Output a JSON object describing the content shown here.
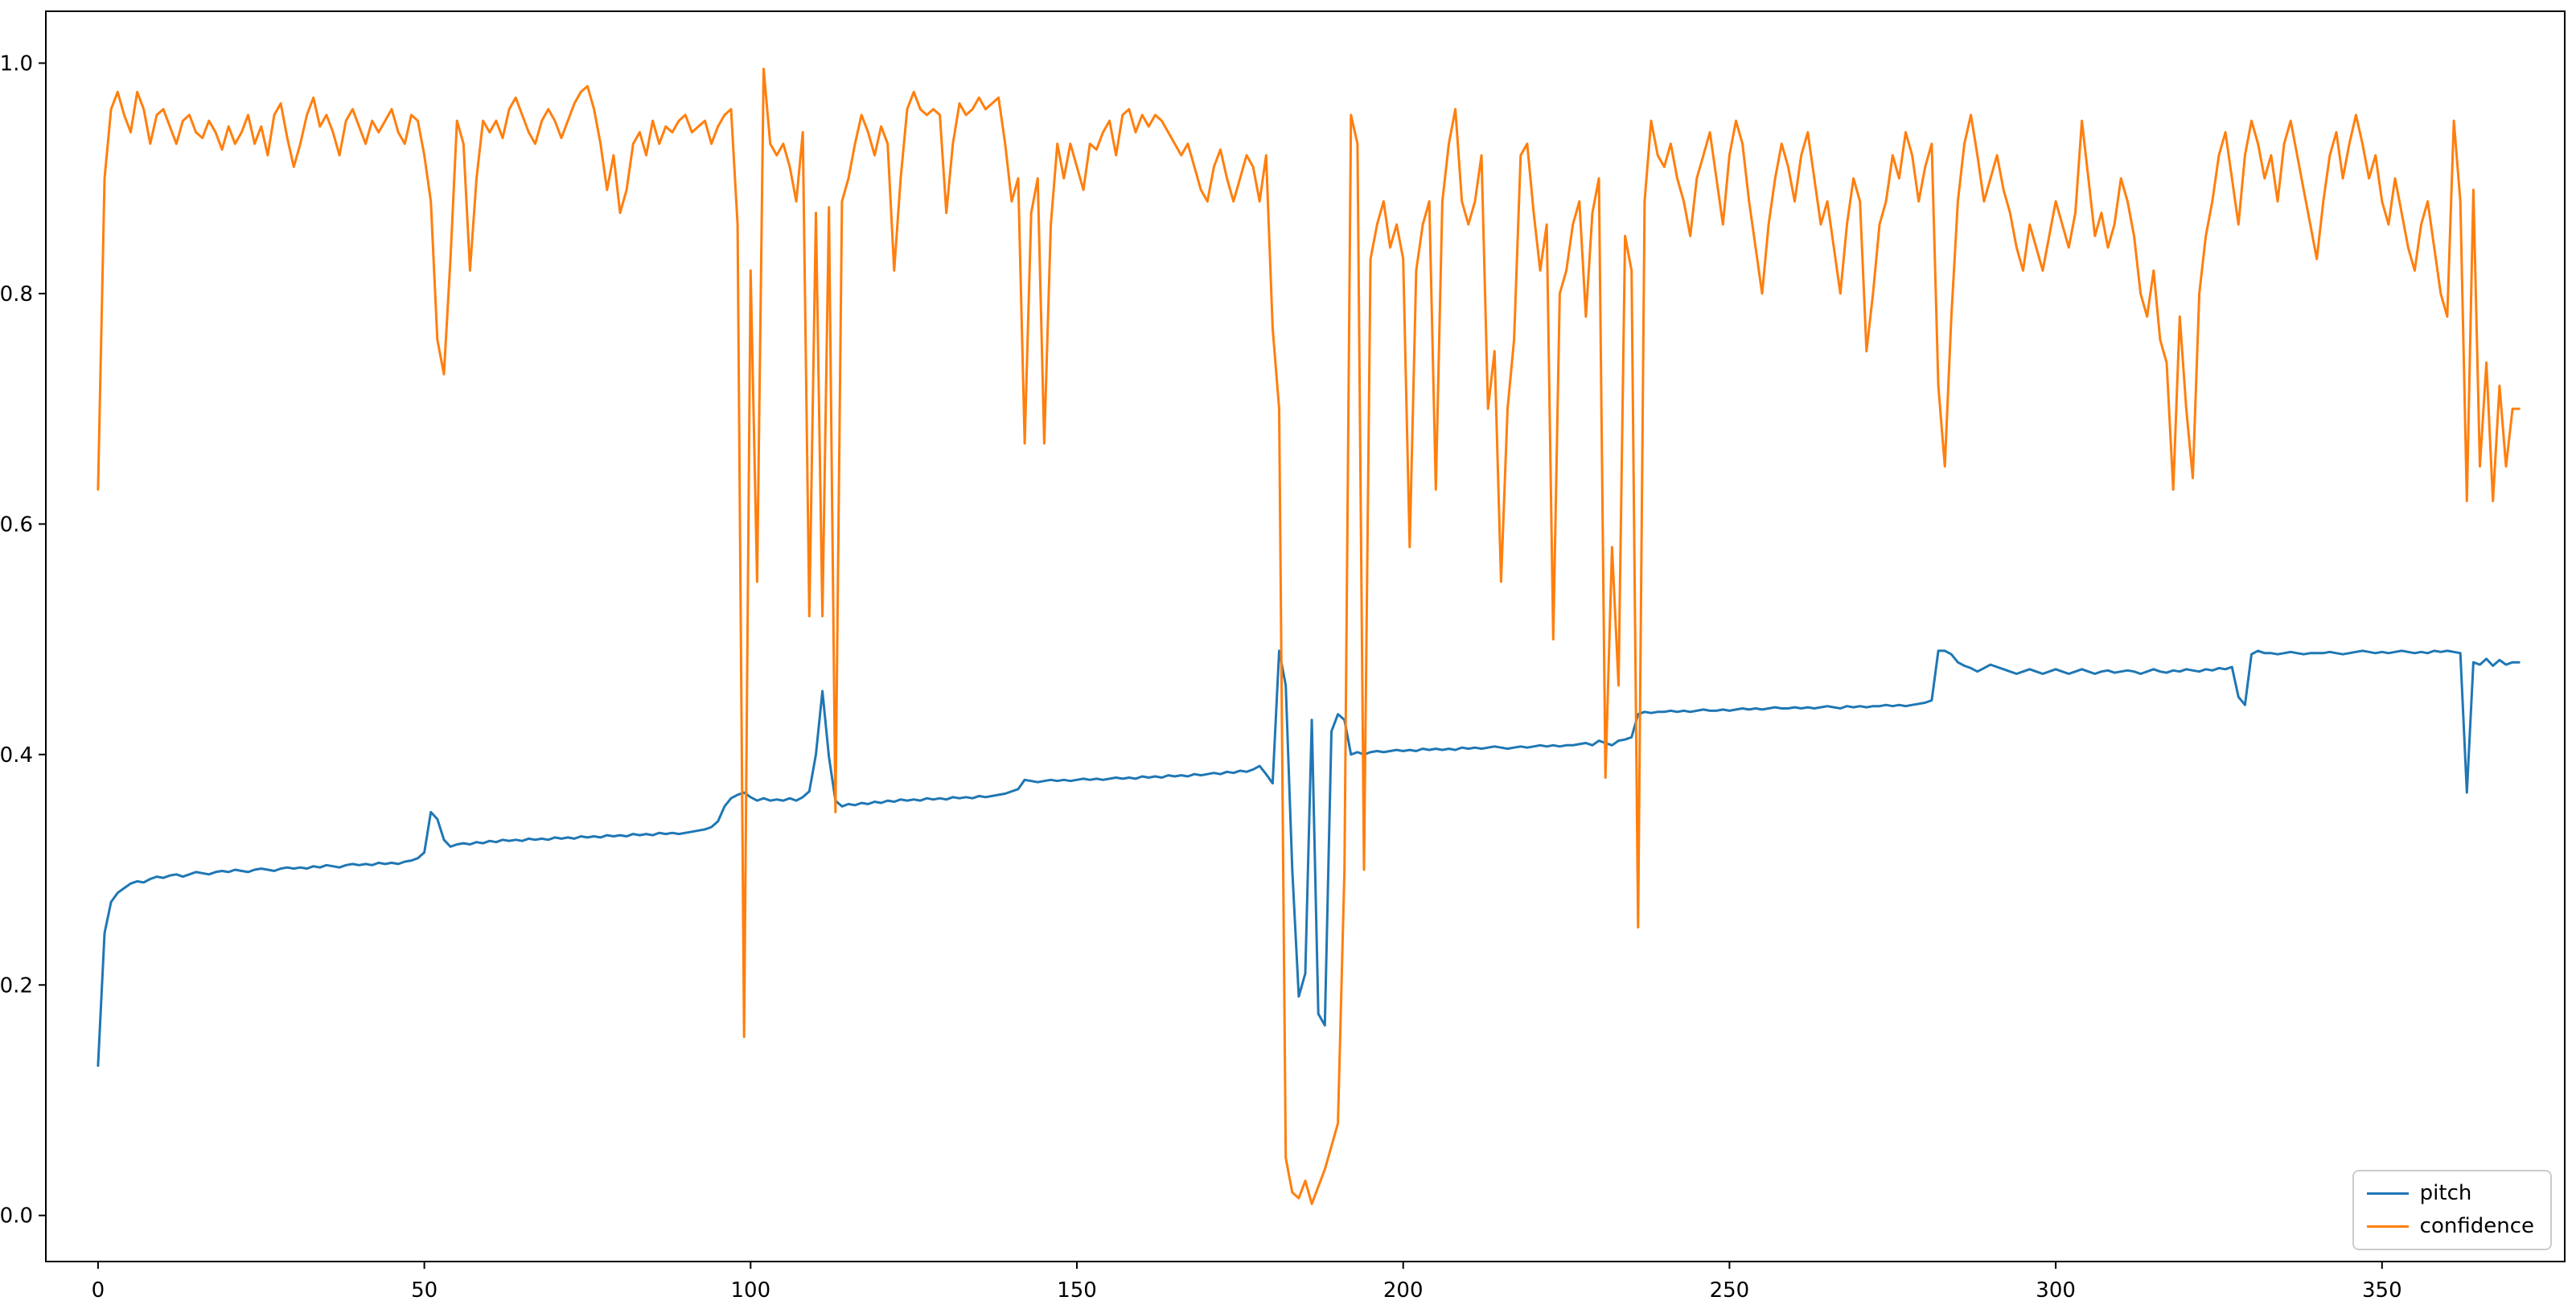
{
  "figure": {
    "background": "#ffffff",
    "axes_edge_color": "#000000",
    "tick_label_color": "#000000"
  },
  "chart_data": {
    "type": "line",
    "grid": false,
    "xlabel": "",
    "ylabel": "",
    "xlim": [
      -8,
      378
    ],
    "ylim": [
      -0.04,
      1.045
    ],
    "x_ticks": [
      0,
      50,
      100,
      150,
      200,
      250,
      300,
      350
    ],
    "x_tick_labels": [
      "0",
      "50",
      "100",
      "150",
      "200",
      "250",
      "300",
      "350"
    ],
    "y_ticks": [
      0.0,
      0.2,
      0.4,
      0.6,
      0.8,
      1.0
    ],
    "y_tick_labels": [
      "0.0",
      "0.2",
      "0.4",
      "0.6",
      "0.8",
      "1.0"
    ],
    "legend": {
      "position": "lower right",
      "entries": [
        "pitch",
        "confidence"
      ]
    },
    "series": [
      {
        "name": "pitch",
        "color": "#1f77b4",
        "values": [
          0.13,
          0.245,
          0.272,
          0.28,
          0.284,
          0.288,
          0.29,
          0.289,
          0.292,
          0.294,
          0.293,
          0.295,
          0.296,
          0.294,
          0.296,
          0.298,
          0.297,
          0.296,
          0.298,
          0.299,
          0.298,
          0.3,
          0.299,
          0.298,
          0.3,
          0.301,
          0.3,
          0.299,
          0.301,
          0.302,
          0.301,
          0.302,
          0.301,
          0.303,
          0.302,
          0.304,
          0.303,
          0.302,
          0.304,
          0.305,
          0.304,
          0.305,
          0.304,
          0.306,
          0.305,
          0.306,
          0.305,
          0.307,
          0.308,
          0.31,
          0.315,
          0.35,
          0.344,
          0.326,
          0.32,
          0.322,
          0.323,
          0.322,
          0.324,
          0.323,
          0.325,
          0.324,
          0.326,
          0.325,
          0.326,
          0.325,
          0.327,
          0.326,
          0.327,
          0.326,
          0.328,
          0.327,
          0.328,
          0.327,
          0.329,
          0.328,
          0.329,
          0.328,
          0.33,
          0.329,
          0.33,
          0.329,
          0.331,
          0.33,
          0.331,
          0.33,
          0.332,
          0.331,
          0.332,
          0.331,
          0.332,
          0.333,
          0.334,
          0.335,
          0.337,
          0.342,
          0.355,
          0.362,
          0.365,
          0.367,
          0.363,
          0.36,
          0.362,
          0.36,
          0.361,
          0.36,
          0.362,
          0.36,
          0.363,
          0.368,
          0.4,
          0.455,
          0.398,
          0.36,
          0.355,
          0.357,
          0.356,
          0.358,
          0.357,
          0.359,
          0.358,
          0.36,
          0.359,
          0.361,
          0.36,
          0.361,
          0.36,
          0.362,
          0.361,
          0.362,
          0.361,
          0.363,
          0.362,
          0.363,
          0.362,
          0.364,
          0.363,
          0.364,
          0.365,
          0.366,
          0.368,
          0.37,
          0.378,
          0.377,
          0.376,
          0.377,
          0.378,
          0.377,
          0.378,
          0.377,
          0.378,
          0.379,
          0.378,
          0.379,
          0.378,
          0.379,
          0.38,
          0.379,
          0.38,
          0.379,
          0.381,
          0.38,
          0.381,
          0.38,
          0.382,
          0.381,
          0.382,
          0.381,
          0.383,
          0.382,
          0.383,
          0.384,
          0.383,
          0.385,
          0.384,
          0.386,
          0.385,
          0.387,
          0.39,
          0.383,
          0.375,
          0.49,
          0.46,
          0.3,
          0.19,
          0.21,
          0.43,
          0.175,
          0.165,
          0.42,
          0.435,
          0.43,
          0.4,
          0.402,
          0.4,
          0.402,
          0.403,
          0.402,
          0.403,
          0.404,
          0.403,
          0.404,
          0.403,
          0.405,
          0.404,
          0.405,
          0.404,
          0.405,
          0.404,
          0.406,
          0.405,
          0.406,
          0.405,
          0.406,
          0.407,
          0.406,
          0.405,
          0.406,
          0.407,
          0.406,
          0.407,
          0.408,
          0.407,
          0.408,
          0.407,
          0.408,
          0.408,
          0.409,
          0.41,
          0.408,
          0.412,
          0.41,
          0.408,
          0.412,
          0.413,
          0.415,
          0.435,
          0.437,
          0.436,
          0.437,
          0.437,
          0.438,
          0.437,
          0.438,
          0.437,
          0.438,
          0.439,
          0.438,
          0.438,
          0.439,
          0.438,
          0.439,
          0.44,
          0.439,
          0.44,
          0.439,
          0.44,
          0.441,
          0.44,
          0.44,
          0.441,
          0.44,
          0.441,
          0.44,
          0.441,
          0.442,
          0.441,
          0.44,
          0.442,
          0.441,
          0.442,
          0.441,
          0.442,
          0.442,
          0.443,
          0.442,
          0.443,
          0.442,
          0.443,
          0.444,
          0.445,
          0.447,
          0.49,
          0.49,
          0.487,
          0.48,
          0.477,
          0.475,
          0.472,
          0.475,
          0.478,
          0.476,
          0.474,
          0.472,
          0.47,
          0.472,
          0.474,
          0.472,
          0.47,
          0.472,
          0.474,
          0.472,
          0.47,
          0.472,
          0.474,
          0.472,
          0.47,
          0.472,
          0.473,
          0.471,
          0.472,
          0.473,
          0.472,
          0.47,
          0.472,
          0.474,
          0.472,
          0.471,
          0.473,
          0.472,
          0.474,
          0.473,
          0.472,
          0.474,
          0.473,
          0.475,
          0.474,
          0.476,
          0.45,
          0.443,
          0.487,
          0.49,
          0.488,
          0.488,
          0.487,
          0.488,
          0.489,
          0.488,
          0.487,
          0.488,
          0.488,
          0.488,
          0.489,
          0.488,
          0.487,
          0.488,
          0.489,
          0.49,
          0.489,
          0.488,
          0.489,
          0.488,
          0.489,
          0.49,
          0.489,
          0.488,
          0.489,
          0.488,
          0.49,
          0.489,
          0.49,
          0.489,
          0.488,
          0.367,
          0.48,
          0.478,
          0.483,
          0.477,
          0.482,
          0.478,
          0.48,
          0.48
        ]
      },
      {
        "name": "confidence",
        "color": "#ff7f0e",
        "values": [
          0.63,
          0.9,
          0.96,
          0.975,
          0.955,
          0.94,
          0.975,
          0.96,
          0.93,
          0.955,
          0.96,
          0.945,
          0.93,
          0.95,
          0.955,
          0.94,
          0.935,
          0.95,
          0.94,
          0.925,
          0.945,
          0.93,
          0.94,
          0.955,
          0.93,
          0.945,
          0.92,
          0.955,
          0.965,
          0.935,
          0.91,
          0.93,
          0.955,
          0.97,
          0.945,
          0.955,
          0.94,
          0.92,
          0.95,
          0.96,
          0.945,
          0.93,
          0.95,
          0.94,
          0.95,
          0.96,
          0.94,
          0.93,
          0.955,
          0.95,
          0.92,
          0.88,
          0.76,
          0.73,
          0.83,
          0.95,
          0.93,
          0.82,
          0.9,
          0.95,
          0.94,
          0.95,
          0.935,
          0.96,
          0.97,
          0.955,
          0.94,
          0.93,
          0.95,
          0.96,
          0.95,
          0.935,
          0.95,
          0.965,
          0.975,
          0.98,
          0.96,
          0.93,
          0.89,
          0.92,
          0.87,
          0.89,
          0.93,
          0.94,
          0.92,
          0.95,
          0.93,
          0.945,
          0.94,
          0.95,
          0.955,
          0.94,
          0.945,
          0.95,
          0.93,
          0.945,
          0.955,
          0.96,
          0.86,
          0.155,
          0.82,
          0.55,
          0.995,
          0.93,
          0.92,
          0.93,
          0.91,
          0.88,
          0.94,
          0.52,
          0.87,
          0.52,
          0.875,
          0.35,
          0.88,
          0.9,
          0.93,
          0.955,
          0.94,
          0.92,
          0.945,
          0.93,
          0.82,
          0.9,
          0.96,
          0.975,
          0.96,
          0.955,
          0.96,
          0.955,
          0.87,
          0.93,
          0.965,
          0.955,
          0.96,
          0.97,
          0.96,
          0.965,
          0.97,
          0.93,
          0.88,
          0.9,
          0.67,
          0.87,
          0.9,
          0.67,
          0.86,
          0.93,
          0.9,
          0.93,
          0.91,
          0.89,
          0.93,
          0.925,
          0.94,
          0.95,
          0.92,
          0.955,
          0.96,
          0.94,
          0.955,
          0.945,
          0.955,
          0.95,
          0.94,
          0.93,
          0.92,
          0.93,
          0.91,
          0.89,
          0.88,
          0.91,
          0.925,
          0.9,
          0.88,
          0.9,
          0.92,
          0.91,
          0.88,
          0.92,
          0.77,
          0.7,
          0.05,
          0.02,
          0.015,
          0.03,
          0.01,
          0.025,
          0.04,
          0.06,
          0.08,
          0.3,
          0.955,
          0.93,
          0.3,
          0.83,
          0.86,
          0.88,
          0.84,
          0.86,
          0.83,
          0.58,
          0.82,
          0.86,
          0.88,
          0.63,
          0.88,
          0.93,
          0.96,
          0.88,
          0.86,
          0.88,
          0.92,
          0.7,
          0.75,
          0.55,
          0.7,
          0.76,
          0.92,
          0.93,
          0.87,
          0.82,
          0.86,
          0.5,
          0.8,
          0.82,
          0.86,
          0.88,
          0.78,
          0.87,
          0.9,
          0.38,
          0.58,
          0.46,
          0.85,
          0.82,
          0.25,
          0.88,
          0.95,
          0.92,
          0.91,
          0.93,
          0.9,
          0.88,
          0.85,
          0.9,
          0.92,
          0.94,
          0.9,
          0.86,
          0.92,
          0.95,
          0.93,
          0.88,
          0.84,
          0.8,
          0.86,
          0.9,
          0.93,
          0.91,
          0.88,
          0.92,
          0.94,
          0.9,
          0.86,
          0.88,
          0.84,
          0.8,
          0.86,
          0.9,
          0.88,
          0.75,
          0.8,
          0.86,
          0.88,
          0.92,
          0.9,
          0.94,
          0.92,
          0.88,
          0.91,
          0.93,
          0.72,
          0.65,
          0.78,
          0.88,
          0.93,
          0.955,
          0.92,
          0.88,
          0.9,
          0.92,
          0.89,
          0.87,
          0.84,
          0.82,
          0.86,
          0.84,
          0.82,
          0.85,
          0.88,
          0.86,
          0.84,
          0.87,
          0.95,
          0.9,
          0.85,
          0.87,
          0.84,
          0.86,
          0.9,
          0.88,
          0.85,
          0.8,
          0.78,
          0.82,
          0.76,
          0.74,
          0.63,
          0.78,
          0.7,
          0.64,
          0.8,
          0.85,
          0.88,
          0.92,
          0.94,
          0.9,
          0.86,
          0.92,
          0.95,
          0.93,
          0.9,
          0.92,
          0.88,
          0.93,
          0.95,
          0.92,
          0.89,
          0.86,
          0.83,
          0.88,
          0.92,
          0.94,
          0.9,
          0.93,
          0.955,
          0.93,
          0.9,
          0.92,
          0.88,
          0.86,
          0.9,
          0.87,
          0.84,
          0.82,
          0.86,
          0.88,
          0.84,
          0.8,
          0.78,
          0.95,
          0.88,
          0.62,
          0.89,
          0.65,
          0.74,
          0.62,
          0.72,
          0.65,
          0.7,
          0.7
        ]
      }
    ]
  }
}
